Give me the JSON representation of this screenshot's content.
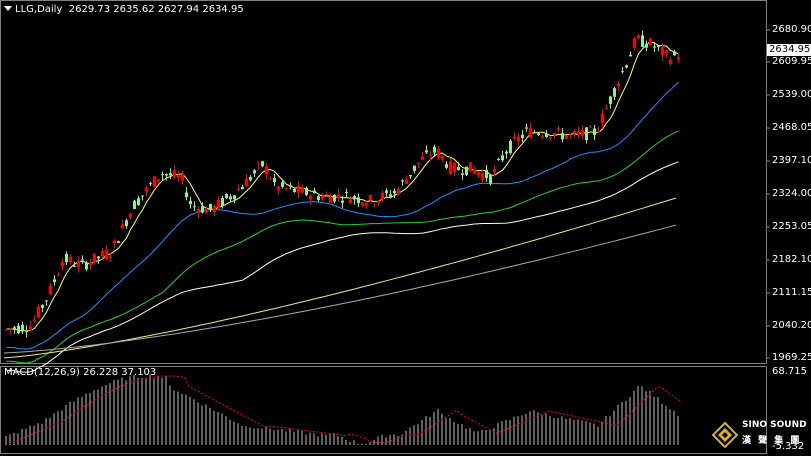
{
  "header": {
    "symbol_line": "LLG,Daily",
    "ohlc": "2629.73 2635.62 2627.94 2634.95"
  },
  "price_axis": {
    "labels": [
      "2680.90",
      "2609.95",
      "2539.00",
      "2468.05",
      "2397.10",
      "2324.00",
      "2253.05",
      "2182.10",
      "2111.15",
      "2040.20",
      "1969.25"
    ],
    "current_price": "2634.95"
  },
  "macd": {
    "label": "MACD(12,26,9) 26.228 37.103",
    "axis_top": "68.715",
    "axis_bottom": "-5.332"
  },
  "colors": {
    "up_candle": "#ff0000",
    "down_candle": "#90ee90",
    "ma_fast": "#ffff66",
    "ma_mid": "#1e90ff",
    "ma_slow": "#32cd32",
    "ma_long": "#ffffe0",
    "ma_longer": "#f0e68c",
    "ma_longest": "#a9a9a9",
    "macd_hist": "#c0c0c0",
    "macd_signal": "#ff0000"
  },
  "logo": {
    "title": "SINO SOUND",
    "subtitle": "漢 聲 集 團",
    "icon": "diamond-logo-icon"
  }
}
